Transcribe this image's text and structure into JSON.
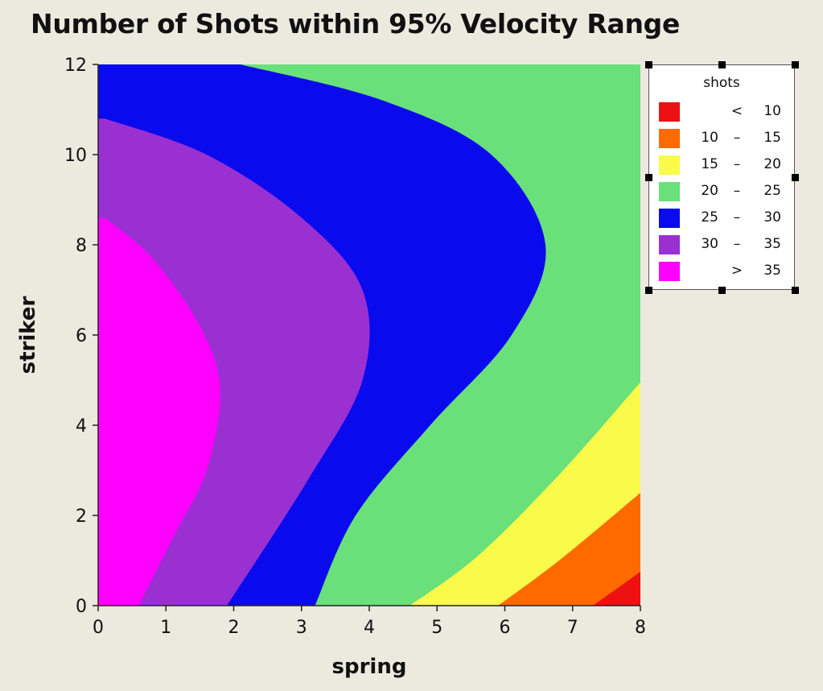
{
  "chart_data": {
    "type": "contour",
    "title": "Number of Shots within 95% Velocity Range",
    "xlabel": "spring",
    "ylabel": "striker",
    "xlim": [
      0,
      8
    ],
    "ylim": [
      0,
      12
    ],
    "xticks": [
      "0",
      "1",
      "2",
      "3",
      "4",
      "5",
      "6",
      "7",
      "8"
    ],
    "yticks": [
      "0",
      "2",
      "4",
      "6",
      "8",
      "10",
      "12"
    ],
    "legend": {
      "title": "shots",
      "position": "right",
      "items": [
        {
          "lo": "",
          "sep": "<",
          "hi": "10",
          "color": "#ee1111"
        },
        {
          "lo": "10",
          "sep": "–",
          "hi": "15",
          "color": "#ff6a00"
        },
        {
          "lo": "15",
          "sep": "–",
          "hi": "20",
          "color": "#fafa4b"
        },
        {
          "lo": "20",
          "sep": "–",
          "hi": "25",
          "color": "#6ae07a"
        },
        {
          "lo": "25",
          "sep": "–",
          "hi": "30",
          "color": "#0a0aee"
        },
        {
          "lo": "30",
          "sep": "–",
          "hi": "35",
          "color": "#9a30d2"
        },
        {
          "lo": "",
          "sep": ">",
          "hi": "35",
          "color": "#ff00ff"
        }
      ]
    },
    "contour_boundaries": [
      {
        "level": 35,
        "points": [
          [
            0.1,
            8.6
          ],
          [
            0.8,
            7.7
          ],
          [
            1.5,
            6.2
          ],
          [
            1.8,
            4.8
          ],
          [
            1.6,
            3.0
          ],
          [
            1.1,
            1.5
          ],
          [
            0.6,
            0.0
          ]
        ]
      },
      {
        "level": 30,
        "points": [
          [
            0.1,
            10.8
          ],
          [
            1.6,
            10.0
          ],
          [
            3.0,
            8.6
          ],
          [
            3.9,
            7.0
          ],
          [
            3.9,
            5.0
          ],
          [
            3.1,
            2.8
          ],
          [
            1.9,
            0.0
          ]
        ]
      },
      {
        "level": 25,
        "points": [
          [
            2.1,
            12.0
          ],
          [
            4.2,
            11.2
          ],
          [
            5.8,
            10.0
          ],
          [
            6.6,
            8.0
          ],
          [
            6.1,
            6.0
          ],
          [
            4.9,
            4.0
          ],
          [
            3.8,
            2.0
          ],
          [
            3.2,
            0.0
          ]
        ]
      },
      {
        "level": 20,
        "points": [
          [
            8.0,
            4.95
          ],
          [
            6.8,
            2.9
          ],
          [
            5.6,
            1.1
          ],
          [
            4.6,
            0.0
          ]
        ]
      },
      {
        "level": 15,
        "points": [
          [
            8.0,
            2.5
          ],
          [
            6.8,
            1.0
          ],
          [
            5.9,
            0.0
          ]
        ]
      },
      {
        "level": 10,
        "points": [
          [
            8.0,
            0.75
          ],
          [
            7.3,
            0.0
          ]
        ]
      }
    ]
  }
}
